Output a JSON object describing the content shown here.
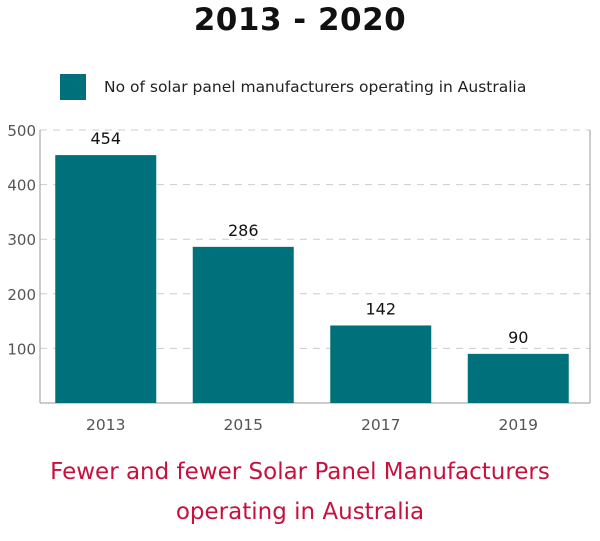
{
  "page": {
    "title": "2013 - 2020",
    "footer_line1": "Fewer and fewer Solar Panel Manufacturers",
    "footer_line2": "operating in Australia"
  },
  "colors": {
    "bar": "#00707a",
    "footer_text": "#c8103e",
    "grid": "#cccccc",
    "axis": "#999999"
  },
  "chart_data": {
    "type": "bar",
    "title": "2013 - 2020",
    "categories": [
      "2013",
      "2015",
      "2017",
      "2019"
    ],
    "series": [
      {
        "name": "No of solar panel manufacturers operating in Australia",
        "values": [
          454,
          286,
          142,
          90
        ]
      }
    ],
    "data_labels": [
      "454",
      "286",
      "142",
      "90"
    ],
    "y_ticks": [
      100,
      200,
      300,
      400,
      500
    ],
    "ylim": [
      0,
      500
    ],
    "grid": "dashed horizontal",
    "legend_position": "top"
  }
}
